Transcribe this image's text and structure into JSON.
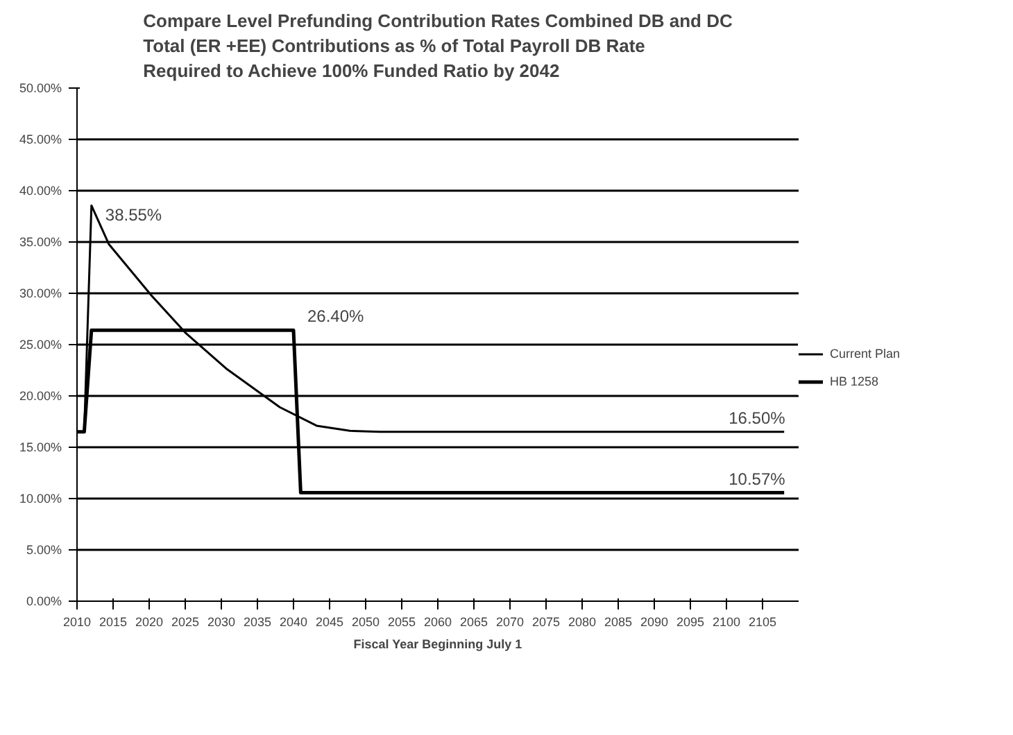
{
  "chart_data": {
    "type": "line",
    "title": "Compare Level Prefunding Contribution Rates Combined DB and DC Total (ER +EE) Contributions as % of Total Payroll DB Rate Required to Achieve 100% Funded Ratio by 2042",
    "xlabel": "Fiscal Year Beginning July 1",
    "series": [
      {
        "name": "Current Plan",
        "color": "#000000",
        "x": [
          2010,
          2011,
          2012,
          2014.4,
          2020.3,
          2025.1,
          2030.8,
          2038.1,
          2043.2,
          2047.8,
          2052,
          2108
        ],
        "values": [
          16.5,
          16.5,
          38.55,
          34.8,
          29.8,
          26.1,
          22.6,
          18.9,
          17.1,
          16.6,
          16.5,
          16.5
        ]
      },
      {
        "name": "HB 1258",
        "color": "#000000",
        "x": [
          2010,
          2011,
          2012,
          2040,
          2041,
          2108
        ],
        "values": [
          16.5,
          16.5,
          26.4,
          26.4,
          10.57,
          10.57
        ]
      }
    ],
    "xlim": [
      2010,
      2110
    ],
    "xticks": [
      2010,
      2015,
      2020,
      2025,
      2030,
      2035,
      2040,
      2045,
      2050,
      2055,
      2060,
      2065,
      2070,
      2075,
      2080,
      2085,
      2090,
      2095,
      2100,
      2105
    ],
    "ylim": [
      0,
      50
    ],
    "yticks": [
      {
        "value": 0,
        "label": "0.00%"
      },
      {
        "value": 5,
        "label": "5.00%"
      },
      {
        "value": 10,
        "label": "10.00%"
      },
      {
        "value": 15,
        "label": "15.00%"
      },
      {
        "value": 20,
        "label": "20.00%"
      },
      {
        "value": 25,
        "label": "25.00%"
      },
      {
        "value": 30,
        "label": "30.00%"
      },
      {
        "value": 35,
        "label": "35.00%"
      },
      {
        "value": 40,
        "label": "40.00%"
      },
      {
        "value": 45,
        "label": "45.00%"
      },
      {
        "value": 50,
        "label": "50.00%"
      }
    ],
    "annotations": [
      {
        "text": "38.55%",
        "x": 2012,
        "y": 38.55
      },
      {
        "text": "26.40%",
        "x": 2040,
        "y": 26.4
      },
      {
        "text": "16.50%",
        "x": 2108,
        "y": 16.5
      },
      {
        "text": "10.57%",
        "x": 2108,
        "y": 10.57
      }
    ],
    "grid": "y",
    "legend": "right",
    "marker": "none",
    "line_style": "solid"
  }
}
